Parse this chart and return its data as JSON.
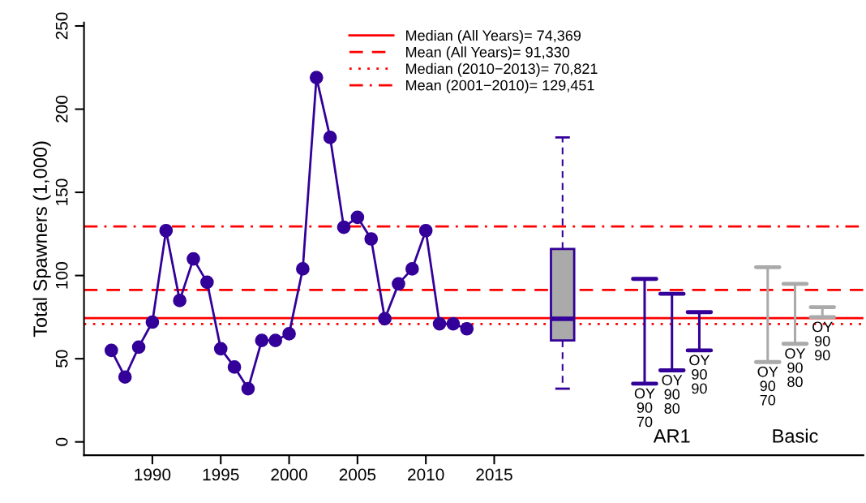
{
  "chart_data": {
    "type": "line",
    "ylabel": "Total Spawners (1,000)",
    "xlim": [
      1985,
      2042
    ],
    "ylim": [
      -8,
      252
    ],
    "xticks": [
      1990,
      1995,
      2000,
      2005,
      2010,
      2015
    ],
    "yticks": [
      0,
      50,
      100,
      150,
      200,
      250
    ],
    "grid": false,
    "legend": "top",
    "marker": "circle",
    "series": [
      {
        "color": "#330099",
        "x": [
          1987,
          1988,
          1989,
          1990,
          1991,
          1992,
          1993,
          1994,
          1995,
          1996,
          1997,
          1998,
          1999,
          2000,
          2001,
          2002,
          2003,
          2004,
          2005,
          2006,
          2007,
          2008,
          2009,
          2010,
          2011,
          2012,
          2013
        ],
        "values": [
          55,
          39,
          57,
          72,
          127,
          85,
          110,
          96,
          56,
          45,
          32,
          61,
          61,
          65,
          104,
          219,
          183,
          129,
          135,
          122,
          74,
          95,
          104,
          127,
          71,
          71,
          68
        ]
      },
      {
        "type": "box",
        "color": "#330099",
        "x": [
          2020
        ],
        "boxes": [
          {
            "low": 32,
            "q1": 61,
            "median": 74,
            "q3": 116,
            "high": 183
          }
        ]
      },
      {
        "type": "bar",
        "color": "#330099",
        "x": [
          2026,
          2028,
          2030
        ],
        "base": [
          35,
          43,
          55
        ],
        "values": [
          63,
          46,
          23
        ]
      },
      {
        "type": "bar",
        "color": "#aaaaaa",
        "x": [
          2035,
          2037,
          2039
        ],
        "base": [
          48,
          59,
          75
        ],
        "values": [
          57,
          36,
          6
        ]
      }
    ],
    "ref_lines": [
      {
        "axis": "y",
        "value": 74.369,
        "label": "Median (All Years)= 74,369",
        "color": "#ff0000",
        "line_style": "solid"
      },
      {
        "axis": "y",
        "value": 91.33,
        "label": "Mean (All Years)= 91,330",
        "color": "#ff0000",
        "line_style": "dashed"
      },
      {
        "axis": "y",
        "value": 70.821,
        "label": "Median (2010−2013)= 70,821",
        "color": "#ff0000",
        "line_style": "dotted"
      },
      {
        "axis": "y",
        "value": 129.451,
        "label": "Mean (2001−2010)= 129,451",
        "color": "#ff0000",
        "line_style": "dashdot"
      }
    ],
    "annotations": [
      {
        "text": "OY\n90\n70",
        "x": 2026,
        "y": 35
      },
      {
        "text": "OY\n90\n80",
        "x": 2028,
        "y": 43
      },
      {
        "text": "OY\n90\n90",
        "x": 2030,
        "y": 55
      },
      {
        "text": "OY\n90\n70",
        "x": 2035,
        "y": 48
      },
      {
        "text": "OY\n90\n80",
        "x": 2037,
        "y": 59
      },
      {
        "text": "OY\n90\n90",
        "x": 2039,
        "y": 75
      },
      "AR1",
      "Basic"
    ]
  }
}
